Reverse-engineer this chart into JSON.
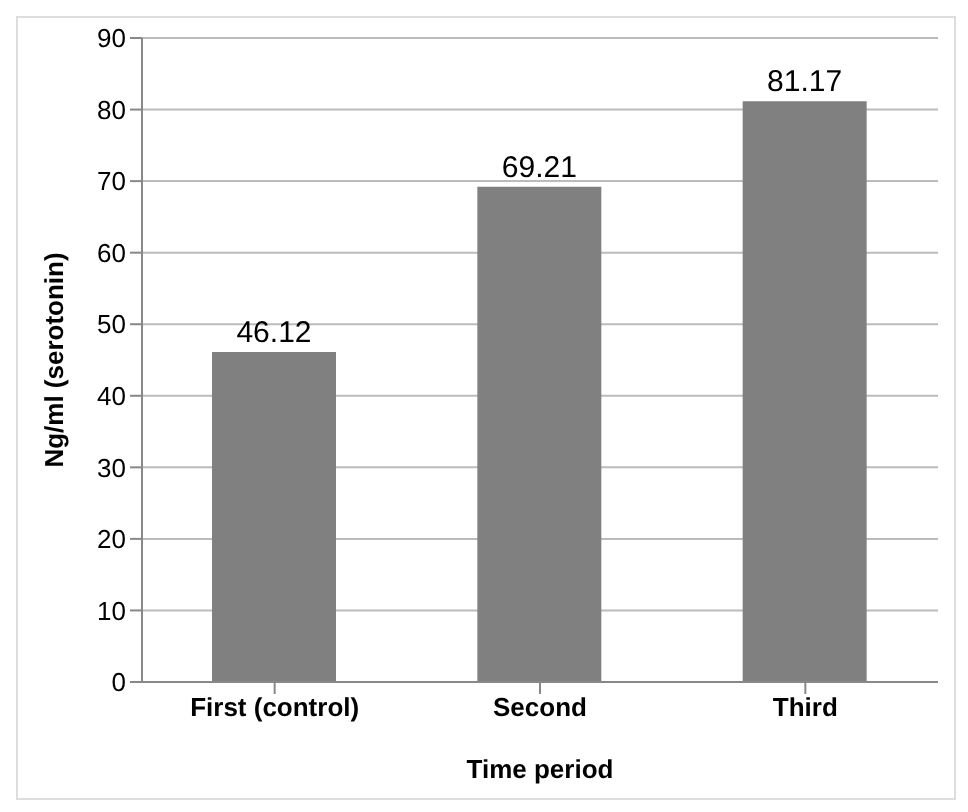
{
  "chart_data": {
    "type": "bar",
    "xlabel": "Time period",
    "ylabel": "Ng/ml (serotonin)",
    "categories": [
      "First (control)",
      "Second",
      "Third"
    ],
    "values": [
      46.12,
      69.21,
      81.17
    ],
    "color": "#808080",
    "ylim": [
      0,
      90
    ],
    "yticks": [
      0,
      10,
      20,
      30,
      40,
      50,
      60,
      70,
      80,
      90
    ],
    "grid": "y",
    "data_labels": true
  }
}
